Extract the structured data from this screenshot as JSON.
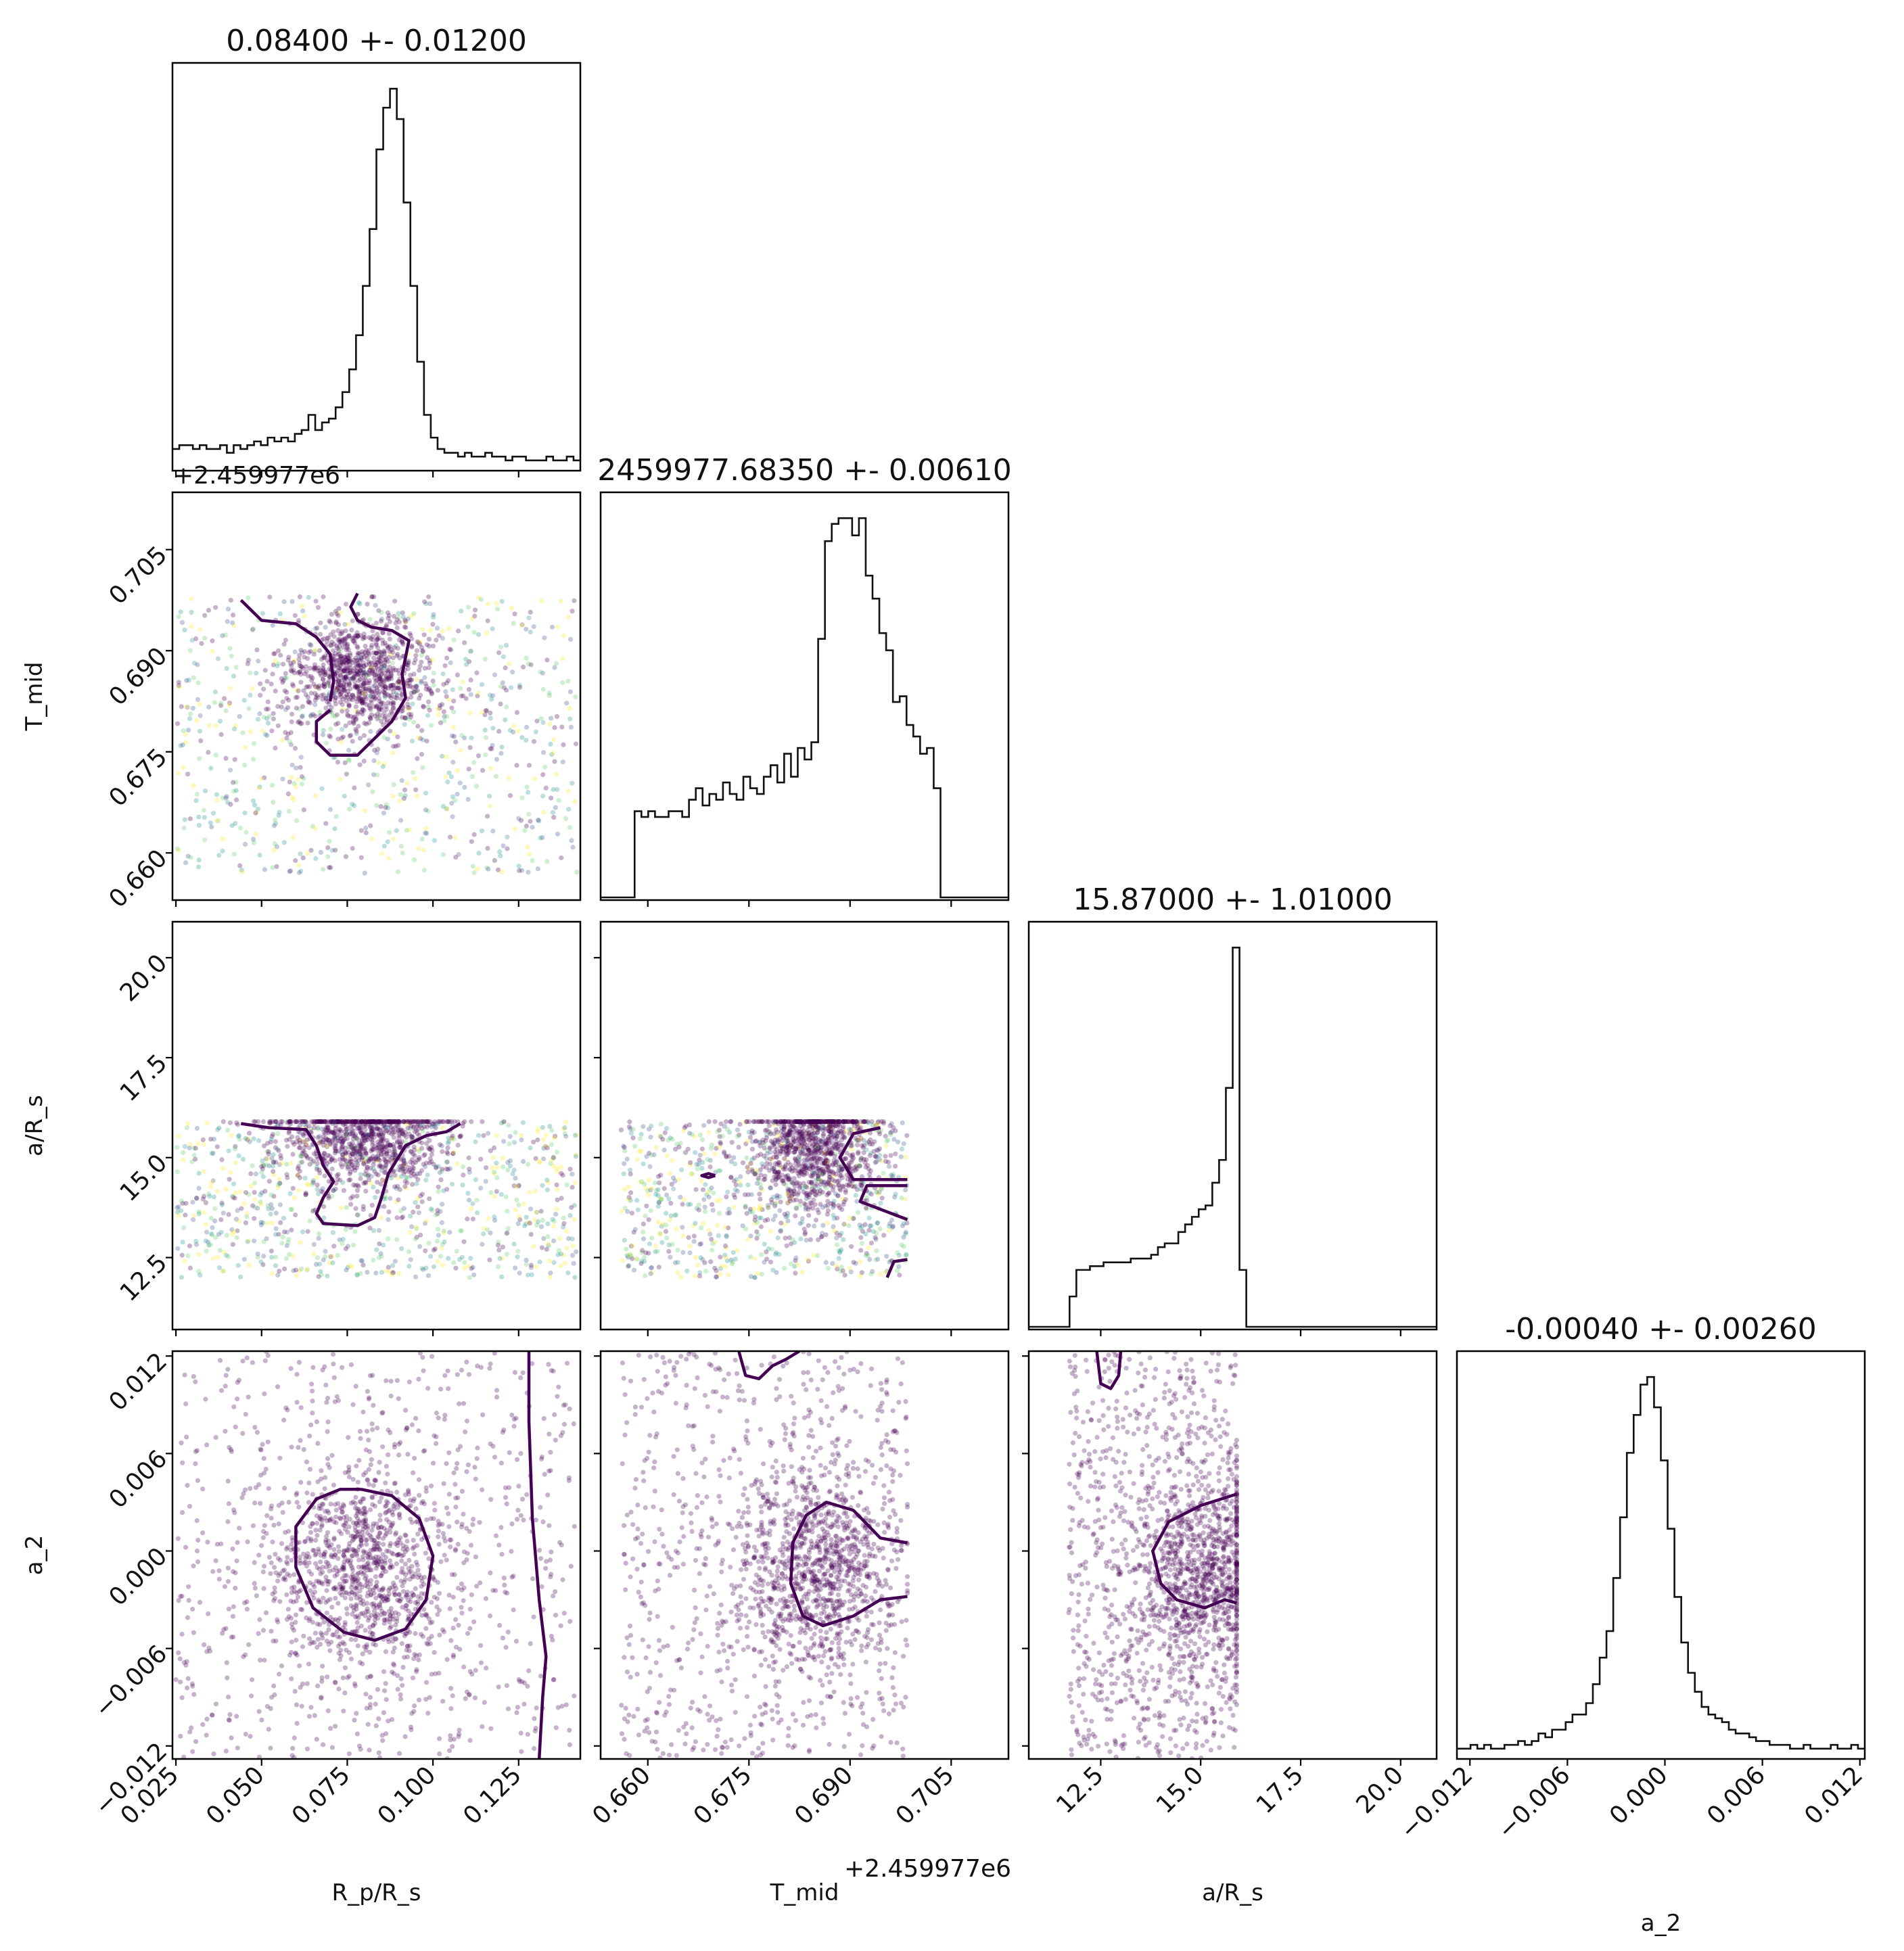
{
  "chart_data": {
    "type": "corner",
    "parameters": [
      {
        "key": "rp",
        "axis_label": "R_p/R_s",
        "title": "0.08400 +- 0.01200",
        "lim": [
          0.024,
          0.143
        ],
        "ticks": [
          0.025,
          0.05,
          0.075,
          0.1,
          0.125
        ],
        "tick_labels": [
          "0.025",
          "0.050",
          "0.075",
          "0.100",
          "0.125"
        ]
      },
      {
        "key": "tmid",
        "axis_label": "T_mid",
        "title": "2459977.68350 +- 0.00610",
        "lim": [
          0.653,
          0.7135
        ],
        "ticks": [
          0.66,
          0.675,
          0.69,
          0.705
        ],
        "tick_labels": [
          "0.660",
          "0.675",
          "0.690",
          "0.705"
        ],
        "offset_text": "+2.459977e6"
      },
      {
        "key": "ars",
        "axis_label": "a/R_s",
        "title": "15.87000 +- 1.01000",
        "lim": [
          10.7,
          20.9
        ],
        "ticks": [
          12.5,
          15.0,
          17.5,
          20.0
        ],
        "tick_labels": [
          "12.5",
          "15.0",
          "17.5",
          "20.0"
        ]
      },
      {
        "key": "a2",
        "axis_label": "a_2",
        "title": "-0.00040 +- 0.00260",
        "lim": [
          -0.0128,
          0.0123
        ],
        "ticks": [
          -0.012,
          -0.006,
          0.0,
          0.006,
          0.012
        ],
        "tick_labels": [
          "−0.012",
          "−0.006",
          "0.000",
          "0.006",
          "0.012"
        ]
      }
    ],
    "histograms": {
      "rp": {
        "edges_range": [
          0.024,
          0.143
        ],
        "counts": [
          5,
          6,
          6,
          5,
          6,
          5,
          5,
          6,
          4,
          6,
          5,
          6,
          7,
          6,
          8,
          7,
          8,
          7,
          9,
          10,
          14,
          10,
          12,
          13,
          16,
          20,
          26,
          35,
          48,
          63,
          84,
          95,
          100,
          92,
          70,
          48,
          28,
          14,
          8,
          5,
          4,
          4,
          3,
          4,
          3,
          3,
          4,
          3,
          3,
          2,
          3,
          3,
          2,
          2,
          2,
          3,
          2,
          2,
          3,
          2
        ]
      },
      "tmid": {
        "edges_range": [
          0.653,
          0.7135
        ],
        "counts": [
          0,
          0,
          0,
          0,
          0,
          15,
          14,
          15,
          14,
          14,
          15,
          15,
          14,
          17,
          19,
          16,
          18,
          17,
          20,
          18,
          17,
          21,
          19,
          18,
          21,
          23,
          20,
          25,
          21,
          26,
          24,
          27,
          45,
          62,
          65,
          66,
          66,
          63,
          66,
          56,
          52,
          46,
          43,
          34,
          35,
          30,
          28,
          25,
          26,
          19,
          0,
          0,
          0,
          0,
          0,
          0,
          0,
          0,
          0,
          0
        ]
      },
      "ars": {
        "edges_range": [
          10.7,
          20.9
        ],
        "counts": [
          0,
          0,
          0,
          0,
          0,
          0,
          8,
          15,
          15,
          16,
          16,
          17,
          17,
          17,
          17,
          18,
          18,
          18,
          19,
          21,
          22,
          22,
          25,
          27,
          29,
          31,
          32,
          38,
          44,
          63,
          100,
          15,
          0,
          0,
          0,
          0,
          0,
          0,
          0,
          0,
          0,
          0,
          0,
          0,
          0,
          0,
          0,
          0,
          0,
          0,
          0,
          0,
          0,
          0,
          0,
          0,
          0,
          0,
          0,
          0
        ]
      },
      "a2": {
        "edges_range": [
          -0.0128,
          0.0123
        ],
        "counts": [
          2,
          2,
          3,
          2,
          3,
          2,
          2,
          3,
          3,
          4,
          3,
          4,
          6,
          5,
          7,
          7,
          9,
          11,
          11,
          14,
          19,
          26,
          33,
          47,
          63,
          80,
          90,
          98,
          100,
          92,
          78,
          60,
          42,
          30,
          22,
          17,
          13,
          11,
          10,
          9,
          7,
          6,
          6,
          5,
          4,
          4,
          3,
          3,
          3,
          2,
          2,
          3,
          2,
          2,
          2,
          3,
          2,
          2,
          3,
          2
        ]
      }
    },
    "scatter_pairs": [
      {
        "x": "rp",
        "y": "tmid",
        "x_range": [
          0.025,
          0.142
        ],
        "y_range": [
          0.657,
          0.698
        ],
        "center": [
          0.079,
          0.6865
        ],
        "spread": [
          0.011,
          0.0045
        ],
        "colored": true
      },
      {
        "x": "rp",
        "y": "ars",
        "x_range": [
          0.025,
          0.142
        ],
        "y_range": [
          12.0,
          15.9
        ],
        "center": [
          0.08,
          15.5
        ],
        "spread": [
          0.012,
          0.7
        ],
        "colored": true
      },
      {
        "x": "tmid",
        "y": "ars",
        "x_range": [
          0.656,
          0.6985
        ],
        "y_range": [
          12.0,
          15.9
        ],
        "center": [
          0.6845,
          15.3
        ],
        "spread": [
          0.0045,
          0.9
        ],
        "colored": true
      },
      {
        "x": "rp",
        "y": "a2",
        "x_range": [
          0.025,
          0.142
        ],
        "y_range": [
          -0.0128,
          0.0123
        ],
        "center": [
          0.079,
          -0.0008
        ],
        "spread": [
          0.013,
          0.0032
        ],
        "colored": false
      },
      {
        "x": "tmid",
        "y": "a2",
        "x_range": [
          0.656,
          0.6985
        ],
        "y_range": [
          -0.0128,
          0.0123
        ],
        "center": [
          0.685,
          -0.001
        ],
        "spread": [
          0.006,
          0.0032
        ],
        "colored": false
      },
      {
        "x": "ars",
        "y": "a2",
        "x_range": [
          11.7,
          15.9
        ],
        "y_range": [
          -0.0128,
          0.0123
        ],
        "center": [
          15.0,
          -0.0015
        ],
        "spread": [
          0.9,
          0.0032
        ],
        "colored": false
      }
    ],
    "contours": [
      {
        "x": "rp",
        "y": "tmid",
        "lines": [
          [
            [
              0.07,
              0.6812
            ],
            [
              0.066,
              0.6795
            ],
            [
              0.066,
              0.6765
            ],
            [
              0.07,
              0.6745
            ],
            [
              0.078,
              0.6745
            ],
            [
              0.088,
              0.6795
            ],
            [
              0.092,
              0.683
            ],
            [
              0.091,
              0.6865
            ],
            [
              0.093,
              0.6915
            ],
            [
              0.088,
              0.693
            ],
            [
              0.082,
              0.6935
            ],
            [
              0.078,
              0.6945
            ],
            [
              0.076,
              0.6965
            ],
            [
              0.078,
              0.6985
            ]
          ],
          [
            [
              0.07,
              0.6825
            ],
            [
              0.071,
              0.6855
            ],
            [
              0.07,
              0.6895
            ],
            [
              0.066,
              0.692
            ],
            [
              0.06,
              0.694
            ],
            [
              0.05,
              0.6945
            ],
            [
              0.044,
              0.6975
            ]
          ]
        ]
      },
      {
        "x": "rp",
        "y": "ars",
        "lines": [
          [
            [
              0.044,
              15.85
            ],
            [
              0.052,
              15.75
            ],
            [
              0.063,
              15.7
            ],
            [
              0.066,
              15.3
            ],
            [
              0.068,
              14.8
            ],
            [
              0.071,
              14.4
            ],
            [
              0.068,
              14.0
            ],
            [
              0.066,
              13.6
            ],
            [
              0.068,
              13.35
            ],
            [
              0.078,
              13.3
            ],
            [
              0.083,
              13.5
            ],
            [
              0.085,
              14.0
            ],
            [
              0.087,
              14.6
            ],
            [
              0.092,
              15.3
            ],
            [
              0.098,
              15.55
            ],
            [
              0.104,
              15.65
            ],
            [
              0.108,
              15.85
            ]
          ]
        ]
      },
      {
        "x": "tmid",
        "y": "ars",
        "lines": [
          [
            [
              0.6945,
              15.75
            ],
            [
              0.6905,
              15.6
            ],
            [
              0.6885,
              15.0
            ],
            [
              0.6905,
              14.45
            ],
            [
              0.6985,
              14.45
            ]
          ],
          [
            [
              0.6985,
              14.3
            ],
            [
              0.6925,
              14.3
            ],
            [
              0.6915,
              13.9
            ],
            [
              0.6985,
              13.45
            ]
          ],
          [
            [
              0.6955,
              12.0
            ],
            [
              0.6965,
              12.4
            ],
            [
              0.6985,
              12.45
            ]
          ],
          [
            [
              0.67,
              14.55
            ],
            [
              0.669,
              14.6
            ],
            [
              0.668,
              14.55
            ],
            [
              0.669,
              14.5
            ],
            [
              0.67,
              14.55
            ]
          ]
        ]
      },
      {
        "x": "rp",
        "y": "a2",
        "lines": [
          [
            [
              0.079,
              0.0038
            ],
            [
              0.088,
              0.0034
            ],
            [
              0.096,
              0.002
            ],
            [
              0.1,
              -0.0003
            ],
            [
              0.098,
              -0.003
            ],
            [
              0.092,
              -0.0048
            ],
            [
              0.083,
              -0.0055
            ],
            [
              0.074,
              -0.005
            ],
            [
              0.065,
              -0.0035
            ],
            [
              0.06,
              -0.001
            ],
            [
              0.06,
              0.0015
            ],
            [
              0.066,
              0.0032
            ],
            [
              0.073,
              0.0038
            ],
            [
              0.079,
              0.0038
            ]
          ],
          [
            [
              0.128,
              0.0123
            ],
            [
              0.128,
              0.008
            ],
            [
              0.129,
              0.002
            ],
            [
              0.131,
              -0.003
            ],
            [
              0.133,
              -0.0065
            ],
            [
              0.132,
              -0.009
            ],
            [
              0.131,
              -0.0128
            ]
          ]
        ]
      },
      {
        "x": "tmid",
        "y": "a2",
        "lines": [
          [
            [
              0.6985,
              0.0005
            ],
            [
              0.6945,
              0.0008
            ],
            [
              0.6905,
              0.0025
            ],
            [
              0.6865,
              0.003
            ],
            [
              0.6835,
              0.0022
            ],
            [
              0.6815,
              0.0005
            ],
            [
              0.6812,
              -0.002
            ],
            [
              0.683,
              -0.004
            ],
            [
              0.686,
              -0.0046
            ],
            [
              0.6905,
              -0.004
            ],
            [
              0.6945,
              -0.003
            ],
            [
              0.6985,
              -0.0028
            ]
          ],
          [
            [
              0.6735,
              0.0123
            ],
            [
              0.6745,
              0.0108
            ],
            [
              0.6765,
              0.0106
            ],
            [
              0.6785,
              0.0114
            ],
            [
              0.6805,
              0.0118
            ],
            [
              0.6825,
              0.0123
            ]
          ]
        ]
      },
      {
        "x": "ars",
        "y": "a2",
        "lines": [
          [
            [
              15.9,
              0.0035
            ],
            [
              15.0,
              0.0028
            ],
            [
              14.2,
              0.0018
            ],
            [
              13.8,
              0.0
            ],
            [
              14.0,
              -0.002
            ],
            [
              14.4,
              -0.003
            ],
            [
              15.1,
              -0.0035
            ],
            [
              15.6,
              -0.003
            ],
            [
              15.9,
              -0.0032
            ]
          ],
          [
            [
              12.4,
              0.0123
            ],
            [
              12.5,
              0.0103
            ],
            [
              12.75,
              0.01
            ],
            [
              12.95,
              0.0108
            ],
            [
              13.0,
              0.0123
            ]
          ]
        ]
      }
    ],
    "colors": {
      "line": "#111111",
      "contour": "#440154",
      "scatter_cmap": [
        "#440154",
        "#3b528b",
        "#21918c",
        "#5ec962",
        "#fde725"
      ]
    }
  }
}
